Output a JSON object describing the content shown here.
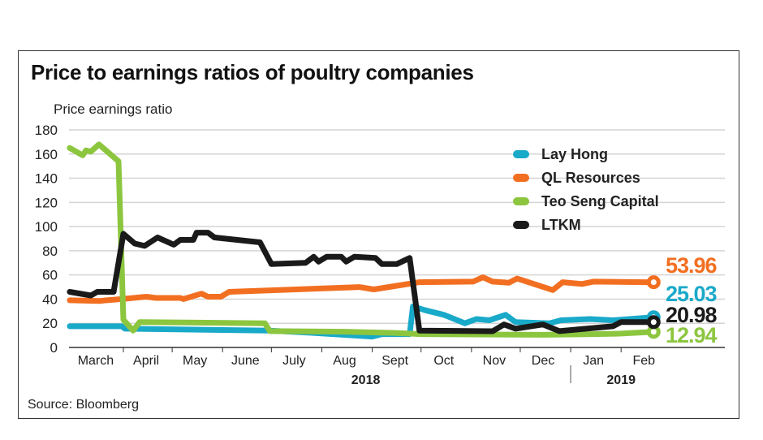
{
  "chart_data": {
    "type": "line",
    "title": "Price to earnings ratios of poultry companies",
    "ylabel": "Price earnings ratio",
    "source": "Source: Bloomberg",
    "ylim": [
      0,
      180
    ],
    "yticks": [
      0,
      20,
      40,
      60,
      80,
      100,
      120,
      140,
      160,
      180
    ],
    "xlim": [
      "2018-02-26",
      "2019-03-15"
    ],
    "month_labels": [
      {
        "label": "March",
        "date": "2018-03-15"
      },
      {
        "label": "April",
        "date": "2018-04-15"
      },
      {
        "label": "May",
        "date": "2018-05-15"
      },
      {
        "label": "June",
        "date": "2018-06-15"
      },
      {
        "label": "July",
        "date": "2018-07-15"
      },
      {
        "label": "Aug",
        "date": "2018-08-15"
      },
      {
        "label": "Sept",
        "date": "2018-09-15"
      },
      {
        "label": "Oct",
        "date": "2018-10-15"
      },
      {
        "label": "Nov",
        "date": "2018-11-15"
      },
      {
        "label": "Dec",
        "date": "2018-12-15"
      },
      {
        "label": "Jan",
        "date": "2019-01-15"
      },
      {
        "label": "Feb",
        "date": "2019-02-15"
      }
    ],
    "year_labels": [
      {
        "label": "2018",
        "date": "2018-08-28"
      },
      {
        "label": "2019",
        "date": "2019-02-01"
      }
    ],
    "grid": true,
    "legend": "top-right",
    "series": [
      {
        "name": "Lay Hong",
        "color": "#19a9c9",
        "end_label": "25.03",
        "points": [
          [
            "2018-02-27",
            17.5
          ],
          [
            "2018-03-31",
            17.5
          ],
          [
            "2018-04-02",
            15.5
          ],
          [
            "2018-06-30",
            14
          ],
          [
            "2018-07-27",
            12
          ],
          [
            "2018-09-01",
            9
          ],
          [
            "2018-09-07",
            11
          ],
          [
            "2018-09-24",
            11
          ],
          [
            "2018-09-26",
            34
          ],
          [
            "2018-10-03",
            31
          ],
          [
            "2018-10-15",
            27
          ],
          [
            "2018-10-28",
            20
          ],
          [
            "2018-11-04",
            23.5
          ],
          [
            "2018-11-12",
            22.5
          ],
          [
            "2018-11-22",
            27
          ],
          [
            "2018-11-28",
            21
          ],
          [
            "2018-12-19",
            20
          ],
          [
            "2018-12-26",
            22.5
          ],
          [
            "2019-01-13",
            23.5
          ],
          [
            "2019-01-27",
            22.5
          ],
          [
            "2019-02-21",
            25.03
          ]
        ]
      },
      {
        "name": "QL Resources",
        "color": "#f26f21",
        "end_label": "53.96",
        "points": [
          [
            "2018-02-27",
            39
          ],
          [
            "2018-03-17",
            38.5
          ],
          [
            "2018-03-31",
            40
          ],
          [
            "2018-04-15",
            42
          ],
          [
            "2018-04-21",
            41
          ],
          [
            "2018-05-06",
            41
          ],
          [
            "2018-05-08",
            40
          ],
          [
            "2018-05-19",
            44.5
          ],
          [
            "2018-05-23",
            42
          ],
          [
            "2018-05-31",
            42
          ],
          [
            "2018-06-05",
            46
          ],
          [
            "2018-08-24",
            50
          ],
          [
            "2018-09-02",
            48
          ],
          [
            "2018-09-30",
            54
          ],
          [
            "2018-11-02",
            54.5
          ],
          [
            "2018-11-08",
            58
          ],
          [
            "2018-11-14",
            54.5
          ],
          [
            "2018-11-24",
            53.5
          ],
          [
            "2018-11-29",
            57
          ],
          [
            "2018-12-21",
            47.5
          ],
          [
            "2018-12-27",
            54
          ],
          [
            "2019-01-08",
            52.5
          ],
          [
            "2019-01-15",
            54.5
          ],
          [
            "2019-02-21",
            53.96
          ]
        ]
      },
      {
        "name": "Teo Seng Capital",
        "color": "#8cc63f",
        "end_label": "12.94",
        "points": [
          [
            "2018-02-27",
            165
          ],
          [
            "2018-03-07",
            159
          ],
          [
            "2018-03-09",
            163
          ],
          [
            "2018-03-12",
            162
          ],
          [
            "2018-03-17",
            168
          ],
          [
            "2018-03-29",
            154
          ],
          [
            "2018-04-01",
            23
          ],
          [
            "2018-04-07",
            14
          ],
          [
            "2018-04-11",
            21
          ],
          [
            "2018-06-27",
            20
          ],
          [
            "2018-06-30",
            13.5
          ],
          [
            "2018-08-15",
            13
          ],
          [
            "2018-09-15",
            12
          ],
          [
            "2018-10-01",
            11
          ],
          [
            "2018-12-15",
            10.5
          ],
          [
            "2019-01-15",
            11
          ],
          [
            "2019-02-01",
            11.5
          ],
          [
            "2019-02-21",
            12.94
          ]
        ]
      },
      {
        "name": "LTKM",
        "color": "#1a1a1a",
        "end_label": "20.98",
        "points": [
          [
            "2018-02-27",
            46
          ],
          [
            "2018-03-12",
            43
          ],
          [
            "2018-03-16",
            46
          ],
          [
            "2018-03-26",
            46
          ],
          [
            "2018-04-01",
            94
          ],
          [
            "2018-04-08",
            86
          ],
          [
            "2018-04-14",
            84
          ],
          [
            "2018-04-22",
            91
          ],
          [
            "2018-05-02",
            85
          ],
          [
            "2018-05-06",
            89
          ],
          [
            "2018-05-14",
            89
          ],
          [
            "2018-05-16",
            95
          ],
          [
            "2018-05-23",
            95
          ],
          [
            "2018-05-27",
            91
          ],
          [
            "2018-06-24",
            87
          ],
          [
            "2018-07-01",
            69
          ],
          [
            "2018-07-22",
            70
          ],
          [
            "2018-07-27",
            75
          ],
          [
            "2018-07-30",
            71
          ],
          [
            "2018-08-04",
            75
          ],
          [
            "2018-08-13",
            75
          ],
          [
            "2018-08-16",
            71
          ],
          [
            "2018-08-21",
            75
          ],
          [
            "2018-09-03",
            74
          ],
          [
            "2018-09-07",
            69
          ],
          [
            "2018-09-16",
            69
          ],
          [
            "2018-09-24",
            74
          ],
          [
            "2018-09-30",
            14
          ],
          [
            "2018-11-14",
            13.4
          ],
          [
            "2018-11-21",
            19
          ],
          [
            "2018-11-28",
            15.5
          ],
          [
            "2018-12-15",
            19
          ],
          [
            "2018-12-25",
            13.5
          ],
          [
            "2019-01-27",
            17.5
          ],
          [
            "2019-02-01",
            21
          ],
          [
            "2019-02-21",
            20.98
          ]
        ]
      }
    ]
  }
}
